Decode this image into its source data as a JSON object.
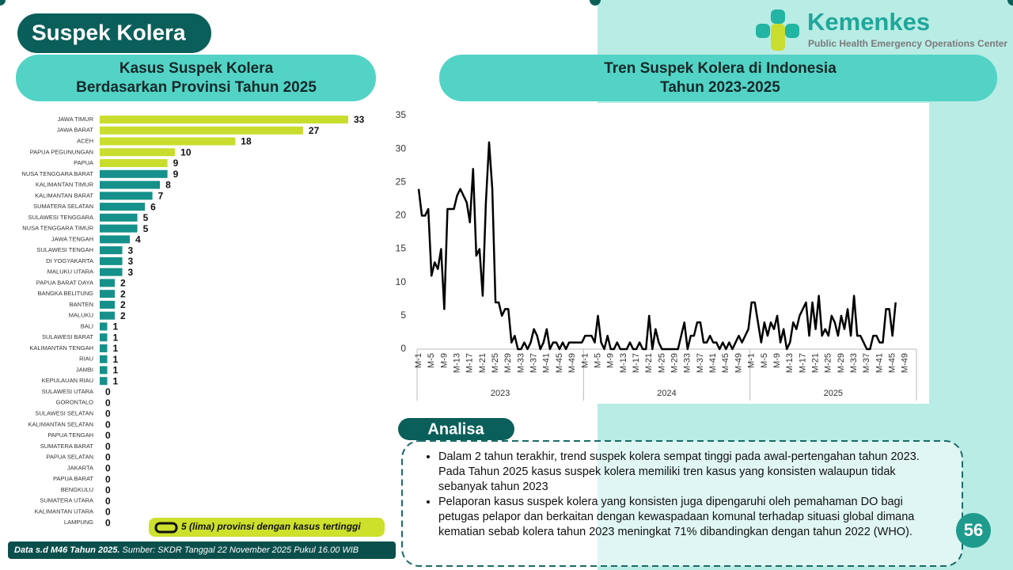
{
  "header": {
    "title": "Suspek Kolera"
  },
  "logo": {
    "name": "Kemenkes",
    "tagline": "Public Health Emergency Operations Center"
  },
  "chart_data": [
    {
      "type": "bar",
      "orientation": "horizontal",
      "title": [
        "Kasus Suspek Kolera",
        "Berdasarkan Provinsi Tahun 2025"
      ],
      "categories": [
        "JAWA TIMUR",
        "JAWA BARAT",
        "ACEH",
        "PAPUA PEGUNUNGAN",
        "PAPUA",
        "NUSA TENGGARA BARAT",
        "KALIMANTAN TIMUR",
        "KALIMANTAN BARAT",
        "SUMATERA SELATAN",
        "SULAWESI TENGGARA",
        "NUSA TENGGARA TIMUR",
        "JAWA TENGAH",
        "SULAWESI TENGAH",
        "DI YOGYAKARTA",
        "MALUKU UTARA",
        "PAPUA BARAT DAYA",
        "BANGKA BELITUNG",
        "BANTEN",
        "MALUKU",
        "BALI",
        "SULAWESI BARAT",
        "KALIMANTAN TENGAH",
        "RIAU",
        "JAMBI",
        "KEPULAUAN RIAU",
        "SULAWESI UTARA",
        "GORONTALO",
        "SULAWESI SELATAN",
        "KALIMANTAN SELATAN",
        "PAPUA TENGAH",
        "SUMATERA BARAT",
        "PAPUA SELATAN",
        "JAKARTA",
        "PAPUA BARAT",
        "BENGKULU",
        "SUMATERA UTARA",
        "KALIMANTAN UTARA",
        "LAMPUNG"
      ],
      "values": [
        33,
        27,
        18,
        10,
        9,
        9,
        8,
        7,
        6,
        5,
        5,
        4,
        3,
        3,
        3,
        2,
        2,
        2,
        2,
        1,
        1,
        1,
        1,
        1,
        1,
        0,
        0,
        0,
        0,
        0,
        0,
        0,
        0,
        0,
        0,
        0,
        0,
        0
      ],
      "colors": [
        "#c9dd2f",
        "#c9dd2f",
        "#c9dd2f",
        "#c9dd2f",
        "#c9dd2f",
        "#16908a",
        "#16908a",
        "#16908a",
        "#16908a",
        "#16908a",
        "#16908a",
        "#16908a",
        "#16908a",
        "#16908a",
        "#16908a",
        "#16908a",
        "#16908a",
        "#16908a",
        "#16908a",
        "#16908a",
        "#16908a",
        "#16908a",
        "#16908a",
        "#16908a",
        "#16908a",
        "#16908a",
        "#16908a",
        "#16908a",
        "#16908a",
        "#16908a",
        "#16908a",
        "#16908a",
        "#16908a",
        "#16908a",
        "#16908a",
        "#16908a",
        "#16908a",
        "#16908a"
      ],
      "legend": "5 (lima) provinsi dengan kasus tertinggi"
    },
    {
      "type": "line",
      "title": [
        "Tren Suspek Kolera di Indonesia",
        "Tahun 2023-2025"
      ],
      "x_groups": [
        "2023",
        "2024",
        "2025"
      ],
      "categories": [
        "M-1",
        null,
        null,
        null,
        "M-5",
        null,
        null,
        null,
        "M-9",
        null,
        null,
        null,
        "M-13",
        null,
        null,
        null,
        "M-17",
        null,
        null,
        null,
        "M-21",
        null,
        null,
        null,
        "M-25",
        null,
        null,
        null,
        "M-29",
        null,
        null,
        null,
        "M-33",
        null,
        null,
        null,
        "M-37",
        null,
        null,
        null,
        "M-41",
        null,
        null,
        null,
        "M-45",
        null,
        null,
        null,
        "M-49",
        null,
        null,
        null,
        "M-1",
        null,
        null,
        null,
        "M-5",
        null,
        null,
        null,
        "M-9",
        null,
        null,
        null,
        "M-13",
        null,
        null,
        null,
        "M-17",
        null,
        null,
        null,
        "M-21",
        null,
        null,
        null,
        "M-25",
        null,
        null,
        null,
        "M-29",
        null,
        null,
        null,
        "M-33",
        null,
        null,
        null,
        "M-37",
        null,
        null,
        null,
        "M-41",
        null,
        null,
        null,
        "M-45",
        null,
        null,
        null,
        "M-49",
        null,
        null,
        null,
        "M-1",
        null,
        null,
        null,
        "M-5",
        null,
        null,
        null,
        "M-9",
        null,
        null,
        null,
        "M-13",
        null,
        null,
        null,
        "M-17",
        null,
        null,
        null,
        "M-21",
        null,
        null,
        null,
        "M-25",
        null,
        null,
        null,
        "M-29",
        null,
        null,
        null,
        "M-33",
        null,
        null,
        null,
        "M-37",
        null,
        null,
        null,
        "M-41",
        null,
        null,
        null,
        "M-45",
        null,
        null,
        null,
        "M-49",
        null,
        null,
        null
      ],
      "values": [
        24,
        20,
        20,
        21,
        11,
        13,
        12,
        15,
        6,
        21,
        21,
        21,
        23,
        24,
        23,
        22,
        19,
        27,
        14,
        15,
        8,
        22,
        31,
        24,
        7,
        7,
        5,
        6,
        6,
        1,
        2,
        0,
        0,
        1,
        0,
        1,
        3,
        2,
        0,
        1,
        3,
        0,
        1,
        1,
        0,
        1,
        0,
        1,
        1,
        1,
        1,
        1,
        2,
        2,
        2,
        1,
        5,
        1,
        0,
        2,
        0,
        0,
        1,
        0,
        0,
        0,
        1,
        0,
        0,
        1,
        0,
        0,
        5,
        0,
        3,
        1,
        0,
        0,
        0,
        0,
        0,
        0,
        2,
        4,
        0,
        2,
        2,
        4,
        4,
        1,
        1,
        2,
        1,
        1,
        0,
        1,
        0,
        1,
        0,
        1,
        2,
        1,
        2,
        3,
        7,
        7,
        4,
        1,
        4,
        2,
        4,
        3,
        5,
        1,
        3,
        0,
        1,
        4,
        3,
        5,
        6,
        7,
        2,
        7,
        3,
        8,
        2,
        3,
        2,
        5,
        4,
        2,
        5,
        3,
        6,
        2,
        8,
        2,
        2,
        1,
        0,
        0,
        2,
        2,
        1,
        1,
        6,
        6,
        2,
        7,
        null,
        null,
        null,
        null,
        null,
        null
      ],
      "color": "#000000",
      "ylim": [
        0,
        35
      ],
      "yticks": [
        0,
        5,
        10,
        15,
        20,
        25,
        30,
        35
      ],
      "grid": false
    }
  ],
  "analysis": {
    "title": "Analisa",
    "points": [
      "Dalam 2 tahun terakhir, trend suspek kolera sempat tinggi pada awal-pertengahan tahun 2023. Pada Tahun 2025 kasus suspek kolera memiliki tren kasus yang konsisten walaupun tidak sebanyak tahun 2023",
      "Pelaporan kasus suspek kolera yang konsisten juga dipengaruhi oleh pemahaman DO bagi petugas pelapor dan berkaitan dengan kewaspadaan komunal terhadap situasi global dimana kematian sebab kolera tahun 2023 meningkat 71% dibandingkan dengan tahun 2022 (WHO)."
    ]
  },
  "footer": {
    "data_note": "Data s.d M46 Tahun 2025.",
    "source": "Sumber: SKDR Tanggal 22 November 2025 Pukul 16.00 WIB"
  },
  "page_number": "56"
}
